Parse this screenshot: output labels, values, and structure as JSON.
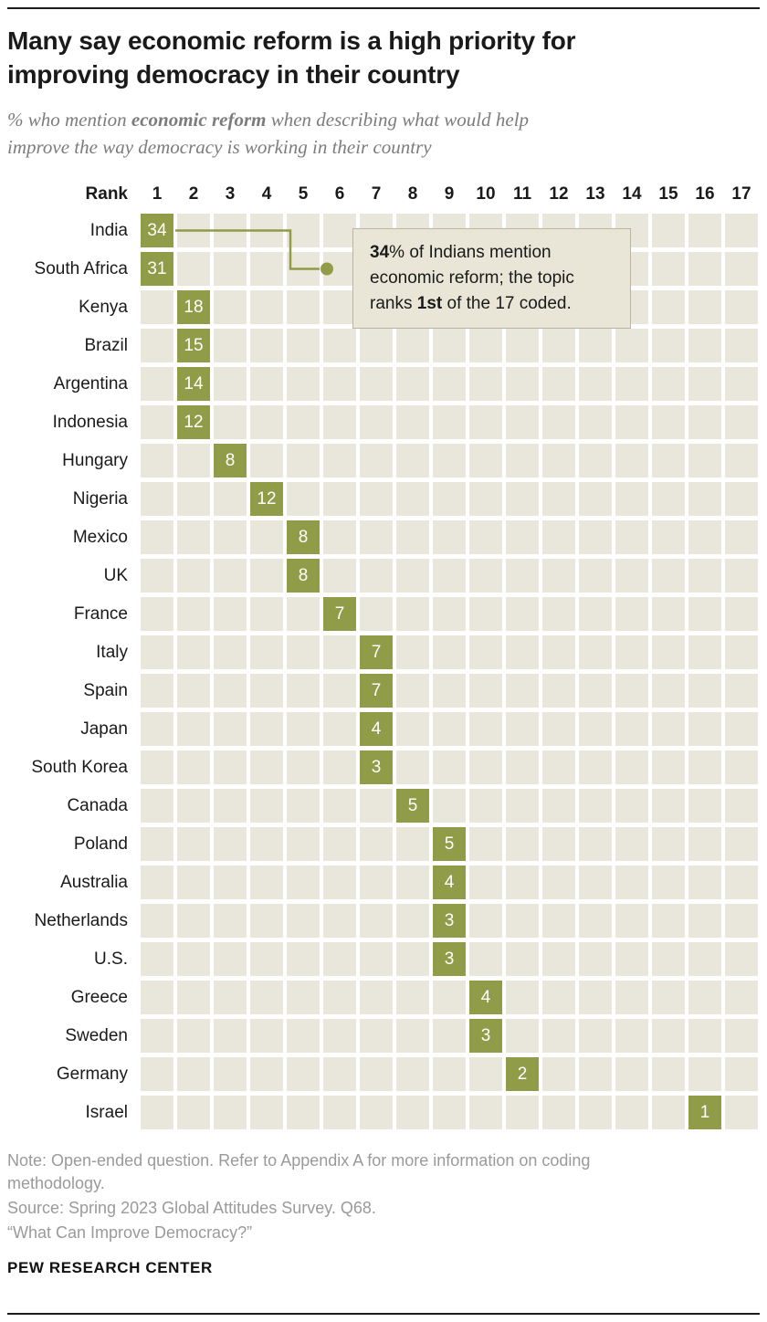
{
  "header": {
    "title": "Many say economic reform is a high priority for improving democracy in their country",
    "subtitle_prefix": "% who mention ",
    "subtitle_bold": "economic reform",
    "subtitle_suffix": " when describing what would help improve the way democracy is working in their country"
  },
  "callout": {
    "bold1": "34",
    "text1": "% of Indians mention economic reform; the topic ranks ",
    "bold2": "1st",
    "text2": " of the 17 coded."
  },
  "notes": {
    "note": "Note: Open-ended question. Refer to Appendix A for more information on coding methodology.",
    "source": "Source: Spring 2023 Global Attitudes Survey. Q68.",
    "series_title": "“What Can Improve Democracy?”",
    "brand": "PEW RESEARCH CENTER"
  },
  "chart_data": {
    "type": "heatmap",
    "title": "Many say economic reform is a high priority for improving democracy in their country",
    "rank_header_label": "Rank",
    "columns": [
      "1",
      "2",
      "3",
      "4",
      "5",
      "6",
      "7",
      "8",
      "9",
      "10",
      "11",
      "12",
      "13",
      "14",
      "15",
      "16",
      "17"
    ],
    "rows": [
      {
        "country": "India",
        "rank": 1,
        "value": 34
      },
      {
        "country": "South Africa",
        "rank": 1,
        "value": 31
      },
      {
        "country": "Kenya",
        "rank": 2,
        "value": 18
      },
      {
        "country": "Brazil",
        "rank": 2,
        "value": 15
      },
      {
        "country": "Argentina",
        "rank": 2,
        "value": 14
      },
      {
        "country": "Indonesia",
        "rank": 2,
        "value": 12
      },
      {
        "country": "Hungary",
        "rank": 3,
        "value": 8
      },
      {
        "country": "Nigeria",
        "rank": 4,
        "value": 12
      },
      {
        "country": "Mexico",
        "rank": 5,
        "value": 8
      },
      {
        "country": "UK",
        "rank": 5,
        "value": 8
      },
      {
        "country": "France",
        "rank": 6,
        "value": 7
      },
      {
        "country": "Italy",
        "rank": 7,
        "value": 7
      },
      {
        "country": "Spain",
        "rank": 7,
        "value": 7
      },
      {
        "country": "Japan",
        "rank": 7,
        "value": 4
      },
      {
        "country": "South Korea",
        "rank": 7,
        "value": 3
      },
      {
        "country": "Canada",
        "rank": 8,
        "value": 5
      },
      {
        "country": "Poland",
        "rank": 9,
        "value": 5
      },
      {
        "country": "Australia",
        "rank": 9,
        "value": 4
      },
      {
        "country": "Netherlands",
        "rank": 9,
        "value": 3
      },
      {
        "country": "U.S.",
        "rank": 9,
        "value": 3
      },
      {
        "country": "Greece",
        "rank": 10,
        "value": 4
      },
      {
        "country": "Sweden",
        "rank": 10,
        "value": 3
      },
      {
        "country": "Germany",
        "rank": 11,
        "value": 2
      },
      {
        "country": "Israel",
        "rank": 16,
        "value": 1
      }
    ],
    "colors": {
      "cell_bg": "#e9e6db",
      "highlight": "#919c49",
      "value_text": "#ffffff",
      "callout_bg": "#e9e6d8",
      "callout_border": "#b9b5a4"
    }
  }
}
